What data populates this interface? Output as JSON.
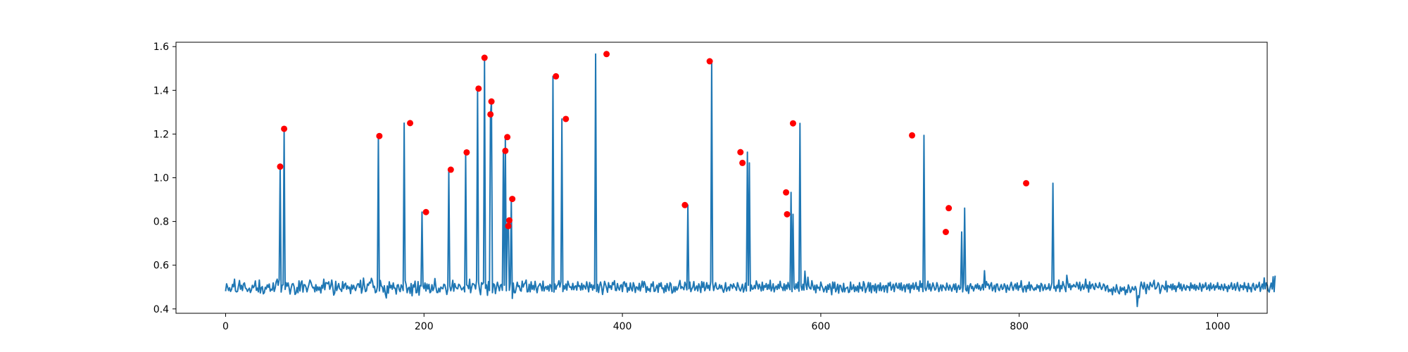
{
  "chart_data": {
    "type": "line",
    "title": "",
    "xlabel": "",
    "ylabel": "",
    "xlim": [
      -50,
      1050
    ],
    "ylim": [
      0.38,
      1.62
    ],
    "grid": false,
    "x_ticks": [
      0,
      200,
      400,
      600,
      800,
      1000
    ],
    "x_tick_labels": [
      "0",
      "200",
      "400",
      "600",
      "800",
      "1000"
    ],
    "y_ticks": [
      0.4,
      0.6,
      0.8,
      1.0,
      1.2,
      1.4,
      1.6
    ],
    "y_tick_labels": [
      "0.4",
      "0.6",
      "0.8",
      "1.0",
      "1.2",
      "1.4",
      "1.6"
    ],
    "series": [
      {
        "kind": "line",
        "color": "#1f77b4",
        "x_start": 0,
        "x_step": 1,
        "values": [
          0.481,
          0.515,
          0.5,
          0.484,
          0.497,
          0.48,
          0.489,
          0.512,
          0.501,
          0.536,
          0.482,
          0.478,
          0.48,
          0.505,
          0.53,
          0.49,
          0.508,
          0.484,
          0.514,
          0.519,
          0.495,
          0.492,
          0.48,
          0.488,
          0.495,
          0.475,
          0.486,
          0.508,
          0.497,
          0.505,
          0.528,
          0.485,
          0.495,
          0.478,
          0.532,
          0.473,
          0.497,
          0.502,
          0.469,
          0.474,
          0.499,
          0.491,
          0.51,
          0.499,
          0.514,
          0.481,
          0.49,
          0.486,
          0.519,
          0.48,
          0.496,
          0.524,
          0.536,
          0.508,
          0.534,
          1.051,
          0.477,
          0.508,
          0.51,
          1.224,
          0.489,
          0.52,
          0.504,
          0.519,
          0.497,
          0.468,
          0.493,
          0.513,
          0.516,
          0.503,
          0.466,
          0.472,
          0.498,
          0.474,
          0.528,
          0.482,
          0.52,
          0.528,
          0.477,
          0.511,
          0.51,
          0.5,
          0.478,
          0.495,
          0.512,
          0.532,
          0.522,
          0.506,
          0.496,
          0.499,
          0.478,
          0.511,
          0.483,
          0.501,
          0.486,
          0.5,
          0.473,
          0.508,
          0.495,
          0.536,
          0.488,
          0.52,
          0.519,
          0.515,
          0.524,
          0.49,
          0.504,
          0.532,
          0.501,
          0.463,
          0.473,
          0.526,
          0.484,
          0.499,
          0.516,
          0.492,
          0.489,
          0.48,
          0.525,
          0.493,
          0.512,
          0.518,
          0.49,
          0.505,
          0.493,
          0.5,
          0.47,
          0.51,
          0.491,
          0.508,
          0.495,
          0.484,
          0.501,
          0.514,
          0.515,
          0.498,
          0.531,
          0.472,
          0.492,
          0.541,
          0.505,
          0.479,
          0.483,
          0.514,
          0.508,
          0.522,
          0.518,
          0.54,
          0.527,
          0.498,
          0.504,
          0.474,
          0.478,
          0.501,
          1.191,
          0.482,
          0.53,
          0.505,
          0.5,
          0.477,
          0.506,
          0.469,
          0.45,
          0.505,
          0.472,
          0.524,
          0.496,
          0.508,
          0.49,
          0.519,
          0.495,
          0.495,
          0.468,
          0.508,
          0.511,
          0.488,
          0.479,
          0.51,
          0.501,
          0.484,
          1.25,
          0.53,
          0.51,
          0.474,
          0.494,
          0.499,
          0.471,
          0.516,
          0.46,
          0.51,
          0.5,
          0.527,
          0.474,
          0.475,
          0.525,
          0.463,
          0.507,
          0.505,
          0.843,
          0.505,
          0.493,
          0.519,
          0.482,
          0.514,
          0.491,
          0.512,
          0.474,
          0.479,
          0.511,
          0.484,
          0.496,
          0.539,
          0.501,
          0.475,
          0.475,
          0.495,
          0.478,
          0.5,
          0.495,
          0.492,
          0.513,
          0.51,
          0.491,
          0.466,
          0.489,
          1.037,
          0.505,
          0.483,
          0.5,
          0.531,
          0.481,
          0.516,
          0.5,
          0.494,
          0.492,
          0.513,
          0.509,
          0.498,
          0.487,
          0.493,
          0.5,
          0.478,
          1.116,
          0.51,
          0.506,
          0.492,
          0.536,
          0.474,
          0.498,
          0.516,
          0.514,
          0.509,
          0.491,
          0.53,
          1.408,
          0.523,
          0.488,
          0.465,
          0.52,
          0.513,
          0.52,
          1.549,
          0.494,
          0.51,
          0.462,
          0.525,
          0.484,
          1.29,
          1.349,
          0.474,
          0.515,
          0.511,
          0.47,
          0.499,
          0.522,
          0.503,
          0.483,
          0.508,
          0.512,
          0.485,
          1.123,
          0.508,
          1.186,
          0.483,
          0.779,
          0.805,
          0.485,
          0.517,
          0.903,
          0.448,
          0.518,
          0.474,
          0.474,
          0.497,
          0.522,
          0.502,
          0.506,
          0.485,
          0.481,
          0.527,
          0.5,
          0.513,
          0.519,
          0.532,
          0.478,
          0.479,
          0.513,
          0.478,
          0.524,
          0.49,
          0.507,
          0.487,
          0.526,
          0.496,
          0.474,
          0.501,
          0.508,
          0.516,
          0.503,
          0.483,
          0.527,
          0.482,
          0.497,
          0.503,
          0.489,
          0.506,
          0.482,
          0.512,
          0.505,
          0.48,
          1.464,
          0.477,
          0.514,
          0.49,
          0.506,
          0.511,
          0.529,
          0.5,
          0.524,
          1.269,
          0.479,
          0.506,
          0.491,
          0.514,
          0.486,
          0.527,
          0.511,
          0.499,
          0.501,
          0.488,
          0.517,
          0.488,
          0.502,
          0.506,
          0.486,
          0.524,
          0.503,
          0.506,
          0.486,
          0.517,
          0.488,
          0.509,
          0.502,
          0.491,
          0.524,
          0.502,
          0.478,
          0.521,
          0.498,
          0.511,
          0.486,
          0.508,
          0.493,
          1.566,
          0.48,
          0.512,
          0.475,
          0.507,
          0.523,
          0.501,
          0.466,
          0.495,
          0.526,
          0.512,
          0.496,
          0.476,
          0.52,
          0.497,
          0.506,
          0.489,
          0.521,
          0.511,
          0.529,
          0.485,
          0.484,
          0.516,
          0.495,
          0.486,
          0.507,
          0.511,
          0.479,
          0.52,
          0.524,
          0.503,
          0.517,
          0.477,
          0.497,
          0.485,
          0.519,
          0.493,
          0.482,
          0.52,
          0.506,
          0.475,
          0.501,
          0.498,
          0.487,
          0.517,
          0.482,
          0.502,
          0.527,
          0.499,
          0.525,
          0.512,
          0.476,
          0.502,
          0.485,
          0.492,
          0.479,
          0.514,
          0.504,
          0.524,
          0.48,
          0.482,
          0.499,
          0.509,
          0.476,
          0.517,
          0.503,
          0.52,
          0.493,
          0.496,
          0.474,
          0.507,
          0.48,
          0.516,
          0.498,
          0.484,
          0.52,
          0.513,
          0.472,
          0.477,
          0.502,
          0.478,
          0.502,
          0.486,
          0.494,
          0.512,
          0.53,
          0.493,
          0.502,
          0.497,
          0.488,
          0.522,
          0.509,
          0.487,
          0.875,
          0.492,
          0.523,
          0.479,
          0.492,
          0.5,
          0.525,
          0.485,
          0.495,
          0.505,
          0.482,
          0.515,
          0.5,
          0.475,
          0.525,
          0.498,
          0.522,
          0.483,
          0.494,
          0.52,
          0.494,
          0.508,
          0.485,
          0.527,
          1.533,
          0.519,
          0.484,
          0.504,
          0.52,
          0.496,
          0.49,
          0.493,
          0.511,
          0.494,
          0.507,
          0.488,
          0.476,
          0.493,
          0.52,
          0.481,
          0.494,
          0.501,
          0.484,
          0.512,
          0.508,
          0.494,
          0.515,
          0.502,
          0.498,
          0.485,
          0.52,
          0.505,
          0.49,
          0.482,
          0.496,
          0.513,
          0.477,
          0.492,
          0.518,
          0.482,
          1.117,
          0.508,
          1.068,
          0.482,
          0.509,
          0.49,
          0.492,
          0.507,
          0.493,
          0.528,
          0.512,
          0.491,
          0.513,
          0.499,
          0.482,
          0.522,
          0.485,
          0.507,
          0.499,
          0.516,
          0.489,
          0.511,
          0.491,
          0.531,
          0.482,
          0.495,
          0.515,
          0.478,
          0.497,
          0.505,
          0.489,
          0.512,
          0.493,
          0.526,
          0.5,
          0.499,
          0.484,
          0.515,
          0.484,
          0.51,
          0.491,
          0.521,
          0.5,
          0.488,
          0.933,
          0.479,
          0.833,
          0.498,
          0.49,
          0.515,
          0.494,
          0.522,
          0.481,
          1.249,
          0.506,
          0.486,
          0.513,
          0.486,
          0.573,
          0.512,
          0.489,
          0.545,
          0.505,
          0.494,
          0.491,
          0.529,
          0.505,
          0.487,
          0.508,
          0.474,
          0.51,
          0.495,
          0.499,
          0.485,
          0.523,
          0.506,
          0.495,
          0.478,
          0.492,
          0.503,
          0.476,
          0.51,
          0.489,
          0.515,
          0.496,
          0.465,
          0.523,
          0.494,
          0.522,
          0.478,
          0.489,
          0.513,
          0.472,
          0.508,
          0.507,
          0.487,
          0.478,
          0.517,
          0.478,
          0.494,
          0.496,
          0.5,
          0.475,
          0.478,
          0.523,
          0.488,
          0.494,
          0.511,
          0.479,
          0.501,
          0.483,
          0.505,
          0.477,
          0.52,
          0.493,
          0.5,
          0.482,
          0.525,
          0.513,
          0.475,
          0.491,
          0.502,
          0.521,
          0.481,
          0.519,
          0.474,
          0.506,
          0.507,
          0.482,
          0.514,
          0.474,
          0.505,
          0.51,
          0.484,
          0.519,
          0.483,
          0.499,
          0.507,
          0.478,
          0.505,
          0.507,
          0.475,
          0.518,
          0.506,
          0.522,
          0.486,
          0.499,
          0.513,
          0.479,
          0.508,
          0.518,
          0.497,
          0.494,
          0.517,
          0.488,
          0.519,
          0.484,
          0.498,
          0.51,
          0.478,
          0.506,
          0.513,
          0.491,
          0.515,
          0.474,
          0.508,
          0.494,
          0.518,
          0.489,
          0.504,
          0.521,
          0.49,
          0.502,
          0.481,
          0.528,
          0.499,
          0.516,
          0.479,
          1.194,
          0.495,
          0.484,
          0.5,
          0.527,
          0.49,
          0.514,
          0.482,
          0.498,
          0.519,
          0.503,
          0.486,
          0.492,
          0.52,
          0.505,
          0.479,
          0.495,
          0.51,
          0.483,
          0.509,
          0.501,
          0.495,
          0.485,
          0.518,
          0.5,
          0.486,
          0.509,
          0.497,
          0.481,
          0.498,
          0.513,
          0.488,
          0.515,
          0.476,
          0.499,
          0.508,
          0.489,
          0.496,
          0.752,
          0.478,
          0.519,
          0.861,
          0.489,
          0.482,
          0.507,
          0.471,
          0.505,
          0.515,
          0.493,
          0.503,
          0.482,
          0.496,
          0.51,
          0.494,
          0.515,
          0.491,
          0.507,
          0.485,
          0.496,
          0.512,
          0.487,
          0.575,
          0.498,
          0.525,
          0.508,
          0.514,
          0.491,
          0.509,
          0.52,
          0.483,
          0.495,
          0.508,
          0.478,
          0.513,
          0.514,
          0.49,
          0.484,
          0.501,
          0.511,
          0.489,
          0.494,
          0.515,
          0.504,
          0.476,
          0.509,
          0.492,
          0.486,
          0.508,
          0.522,
          0.499,
          0.485,
          0.505,
          0.514,
          0.491,
          0.519,
          0.485,
          0.505,
          0.499,
          0.529,
          0.492,
          0.477,
          0.503,
          0.505,
          0.478,
          0.508,
          0.493,
          0.523,
          0.485,
          0.51,
          0.502,
          0.491,
          0.485,
          0.497,
          0.488,
          0.511,
          0.496,
          0.506,
          0.48,
          0.517,
          0.511,
          0.484,
          0.496,
          0.511,
          0.488,
          0.497,
          0.492,
          0.515,
          0.485,
          0.498,
          0.519,
          0.975,
          0.494,
          0.503,
          0.481,
          0.508,
          0.496,
          0.532,
          0.479,
          0.507,
          0.492,
          0.525,
          0.509,
          0.496,
          0.479,
          0.554,
          0.52,
          0.498,
          0.515,
          0.488,
          0.507,
          0.501,
          0.512,
          0.503,
          0.5,
          0.522,
          0.509,
          0.491,
          0.522,
          0.484,
          0.499,
          0.512,
          0.49,
          0.501,
          0.536,
          0.496,
          0.509,
          0.477,
          0.524,
          0.493,
          0.509,
          0.514,
          0.495,
          0.489,
          0.517,
          0.505,
          0.498,
          0.497,
          0.52,
          0.502,
          0.489,
          0.498,
          0.514,
          0.508,
          0.483,
          0.502,
          0.507,
          0.478,
          0.489,
          0.481,
          0.492,
          0.465,
          0.5,
          0.486,
          0.477,
          0.511,
          0.49,
          0.475,
          0.469,
          0.501,
          0.481,
          0.496,
          0.486,
          0.5,
          0.465,
          0.487,
          0.475,
          0.51,
          0.497,
          0.475,
          0.482,
          0.501,
          0.49,
          0.486,
          0.503,
          0.49,
          0.411,
          0.46,
          0.452,
          0.499,
          0.523,
          0.505,
          0.491,
          0.521,
          0.496,
          0.47,
          0.512,
          0.5,
          0.488,
          0.521,
          0.509,
          0.501,
          0.515,
          0.531,
          0.491,
          0.493,
          0.502,
          0.52,
          0.51,
          0.471,
          0.487,
          0.508,
          0.505,
          0.496,
          0.488,
          0.527,
          0.478,
          0.507,
          0.503,
          0.496,
          0.512,
          0.487,
          0.514,
          0.49,
          0.506,
          0.479,
          0.504,
          0.499,
          0.521,
          0.492,
          0.514,
          0.483,
          0.497,
          0.511,
          0.493,
          0.486,
          0.507,
          0.498,
          0.502,
          0.484,
          0.519,
          0.495,
          0.509,
          0.491,
          0.512,
          0.485,
          0.507,
          0.496,
          0.489,
          0.518,
          0.502,
          0.481,
          0.513,
          0.497,
          0.504,
          0.52,
          0.489,
          0.494,
          0.51,
          0.484,
          0.518,
          0.492,
          0.499,
          0.511,
          0.486,
          0.505,
          0.497,
          0.52,
          0.491,
          0.503,
          0.488,
          0.512,
          0.498,
          0.485,
          0.514,
          0.495,
          0.502,
          0.479,
          0.508,
          0.493,
          0.504,
          0.52,
          0.489,
          0.496,
          0.515,
          0.485,
          0.501,
          0.521,
          0.494,
          0.482,
          0.51,
          0.498,
          0.506,
          0.488,
          0.52,
          0.496,
          0.503,
          0.479,
          0.517,
          0.492,
          0.499,
          0.478,
          0.508,
          0.517,
          0.492,
          0.486,
          0.511,
          0.497,
          0.504,
          0.522,
          0.48,
          0.498,
          0.514,
          0.491,
          0.542,
          0.492,
          0.519,
          0.51,
          0.484,
          0.477,
          0.5,
          0.518,
          0.491,
          0.547,
          0.479,
          0.552
        ]
      },
      {
        "kind": "scatter",
        "color": "#ff0000",
        "x": [
          55,
          59,
          155,
          186,
          202,
          227,
          243,
          255,
          261,
          267,
          268,
          282,
          284,
          285,
          286,
          289,
          333,
          343,
          384,
          463,
          488,
          519,
          521,
          565,
          566,
          572,
          692,
          726,
          729,
          807
        ],
        "y": [
          1.051,
          1.224,
          1.191,
          1.25,
          0.843,
          1.037,
          1.116,
          1.408,
          1.549,
          1.29,
          1.349,
          1.123,
          1.186,
          0.779,
          0.805,
          0.903,
          1.464,
          1.269,
          1.566,
          0.875,
          1.533,
          1.117,
          1.068,
          0.933,
          0.833,
          1.249,
          1.194,
          0.752,
          0.861,
          0.975
        ]
      }
    ]
  }
}
